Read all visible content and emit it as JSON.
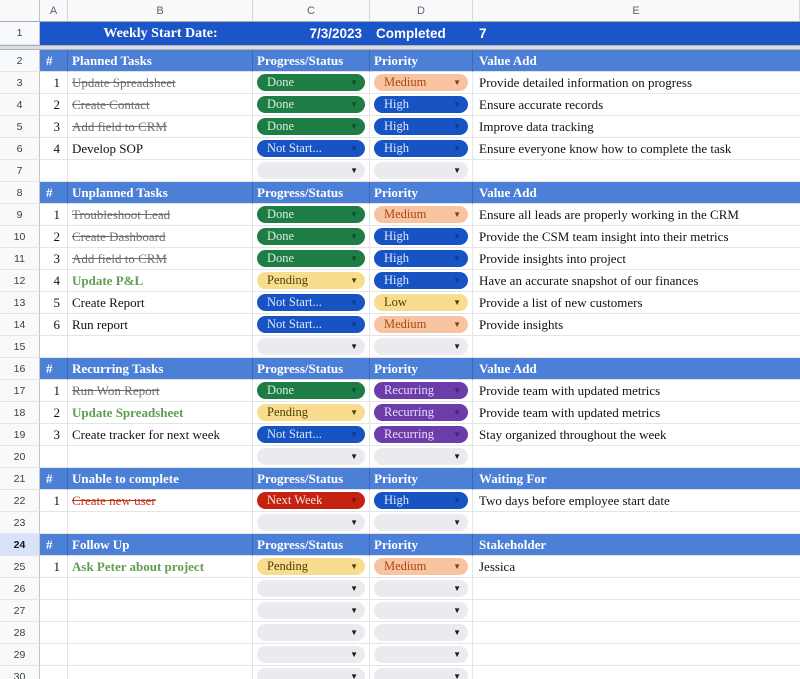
{
  "column_headers": [
    "A",
    "B",
    "C",
    "D",
    "E"
  ],
  "title_row": {
    "n": "1",
    "label": "Weekly Start Date:",
    "date": "7/3/2023",
    "completed_label": "Completed",
    "completed_count": "7"
  },
  "colors": {
    "title_row_bg": "#1b55c8",
    "section_bg": "#4c7fd6",
    "grid_line": "#e4e5e6",
    "gutter_selected": "#d8e2f8"
  },
  "pill_styles": {
    "done": {
      "bg": "#1e7c45",
      "fg": "#d9eedd",
      "arrow": "#0b4f2a"
    },
    "notstarted": {
      "bg": "#1853c4",
      "fg": "#dfe8fb",
      "arrow": "#0c3a8e"
    },
    "pending": {
      "bg": "#f9dd8f",
      "fg": "#4e3d07",
      "arrow": "#4e3d07"
    },
    "nextweek": {
      "bg": "#c32310",
      "fg": "#fae2dc",
      "arrow": "#7c1407"
    },
    "high": {
      "bg": "#1853c4",
      "fg": "#dfe8fb",
      "arrow": "#0c3a8e"
    },
    "medium": {
      "bg": "#f8c3a0",
      "fg": "#a84a10",
      "arrow": "#8c3a08"
    },
    "low": {
      "bg": "#f9dd8f",
      "fg": "#4e3d07",
      "arrow": "#4e3d07"
    },
    "recurring": {
      "bg": "#6b3caa",
      "fg": "#e7dcf8",
      "arrow": "#43207a"
    },
    "empty": {
      "bg": "#e9ebee",
      "fg": "#111111",
      "arrow": "#1a1a1a"
    }
  },
  "dropdown_icon": "▼",
  "rows": [
    {
      "n": "2",
      "type": "section",
      "a": "#",
      "b": "Planned Tasks",
      "c": "Progress/Status",
      "d": "Priority",
      "e": "Value Add"
    },
    {
      "n": "3",
      "type": "task",
      "a": "1",
      "b": "Update Spreadsheet",
      "b_style": "strike",
      "status": "Done",
      "status_style": "done",
      "priority": "Medium",
      "priority_style": "medium",
      "e": "Provide detailed information on progress"
    },
    {
      "n": "4",
      "type": "task",
      "a": "2",
      "b": "Create Contact",
      "b_style": "strike",
      "status": "Done",
      "status_style": "done",
      "priority": "High",
      "priority_style": "high",
      "e": "Ensure accurate records"
    },
    {
      "n": "5",
      "type": "task",
      "a": "3",
      "b": "Add field to CRM",
      "b_style": "strike",
      "status": "Done",
      "status_style": "done",
      "priority": "High",
      "priority_style": "high",
      "e": "Improve data tracking"
    },
    {
      "n": "6",
      "type": "task",
      "a": "4",
      "b": "Develop SOP",
      "b_style": "normal",
      "status": "Not Start...",
      "status_style": "notstarted",
      "priority": "High",
      "priority_style": "high",
      "e": "Ensure everyone know how to complete the task"
    },
    {
      "n": "7",
      "type": "spacer"
    },
    {
      "n": "8",
      "type": "section",
      "a": "#",
      "b": "Unplanned Tasks",
      "c": "Progress/Status",
      "d": "Priority",
      "e": "Value Add"
    },
    {
      "n": "9",
      "type": "task",
      "a": "1",
      "b": "Troubleshoot Lead",
      "b_style": "strike",
      "status": "Done",
      "status_style": "done",
      "priority": "Medium",
      "priority_style": "medium",
      "e": "Ensure all leads are properly working in the CRM"
    },
    {
      "n": "10",
      "type": "task",
      "a": "2",
      "b": "Create Dashboard",
      "b_style": "strike",
      "status": "Done",
      "status_style": "done",
      "priority": "High",
      "priority_style": "high",
      "e": "Provide the CSM team insight into their metrics"
    },
    {
      "n": "11",
      "type": "task",
      "a": "3",
      "b": "Add field to CRM",
      "b_style": "strike",
      "status": "Done",
      "status_style": "done",
      "priority": "High",
      "priority_style": "high",
      "e": "Provide insights into project"
    },
    {
      "n": "12",
      "type": "task",
      "a": "4",
      "b": "Update P&L",
      "b_style": "green",
      "status": "Pending",
      "status_style": "pending",
      "priority": "High",
      "priority_style": "high",
      "e": "Have an accurate snapshot of our finances"
    },
    {
      "n": "13",
      "type": "task",
      "a": "5",
      "b": "Create Report",
      "b_style": "normal",
      "status": "Not Start...",
      "status_style": "notstarted",
      "priority": "Low",
      "priority_style": "low",
      "e": "Provide a list of new customers"
    },
    {
      "n": "14",
      "type": "task",
      "a": "6",
      "b": "Run report",
      "b_style": "normal",
      "status": "Not Start...",
      "status_style": "notstarted",
      "priority": "Medium",
      "priority_style": "medium",
      "e": "Provide insights"
    },
    {
      "n": "15",
      "type": "spacer"
    },
    {
      "n": "16",
      "type": "section",
      "a": "#",
      "b": "Recurring Tasks",
      "c": "Progress/Status",
      "d": "Priority",
      "e": "Value Add"
    },
    {
      "n": "17",
      "type": "task",
      "a": "1",
      "b": "Run Won Report",
      "b_style": "strike",
      "status": "Done",
      "status_style": "done",
      "priority": "Recurring",
      "priority_style": "recurring",
      "e": "Provide team with updated metrics"
    },
    {
      "n": "18",
      "type": "task",
      "a": "2",
      "b": "Update Spreadsheet",
      "b_style": "green",
      "status": "Pending",
      "status_style": "pending",
      "priority": "Recurring",
      "priority_style": "recurring",
      "e": "Provide team with updated metrics"
    },
    {
      "n": "19",
      "type": "task",
      "a": "3",
      "b": "Create tracker for next week",
      "b_style": "normal",
      "status": "Not Start...",
      "status_style": "notstarted",
      "priority": "Recurring",
      "priority_style": "recurring",
      "e": "Stay organized throughout the week"
    },
    {
      "n": "20",
      "type": "spacer"
    },
    {
      "n": "21",
      "type": "section",
      "a": "#",
      "b": "Unable to complete",
      "c": "Progress/Status",
      "d": "Priority",
      "e": "Waiting For"
    },
    {
      "n": "22",
      "type": "task",
      "a": "1",
      "b": "Create new user",
      "b_style": "strike-red",
      "status": "Next Week",
      "status_style": "nextweek",
      "priority": "High",
      "priority_style": "high",
      "e": "Two days before employee start date"
    },
    {
      "n": "23",
      "type": "spacer"
    },
    {
      "n": "24",
      "type": "section",
      "selected": true,
      "a": "#",
      "b": "Follow Up",
      "c": "Progress/Status",
      "d": "Priority",
      "e": "Stakeholder"
    },
    {
      "n": "25",
      "type": "task",
      "a": "1",
      "b": "Ask Peter about project",
      "b_style": "green",
      "status": "Pending",
      "status_style": "pending",
      "priority": "Medium",
      "priority_style": "medium",
      "e": "Jessica"
    },
    {
      "n": "26",
      "type": "spacer"
    },
    {
      "n": "27",
      "type": "spacer"
    },
    {
      "n": "28",
      "type": "spacer"
    },
    {
      "n": "29",
      "type": "spacer"
    },
    {
      "n": "30",
      "type": "spacer"
    }
  ]
}
